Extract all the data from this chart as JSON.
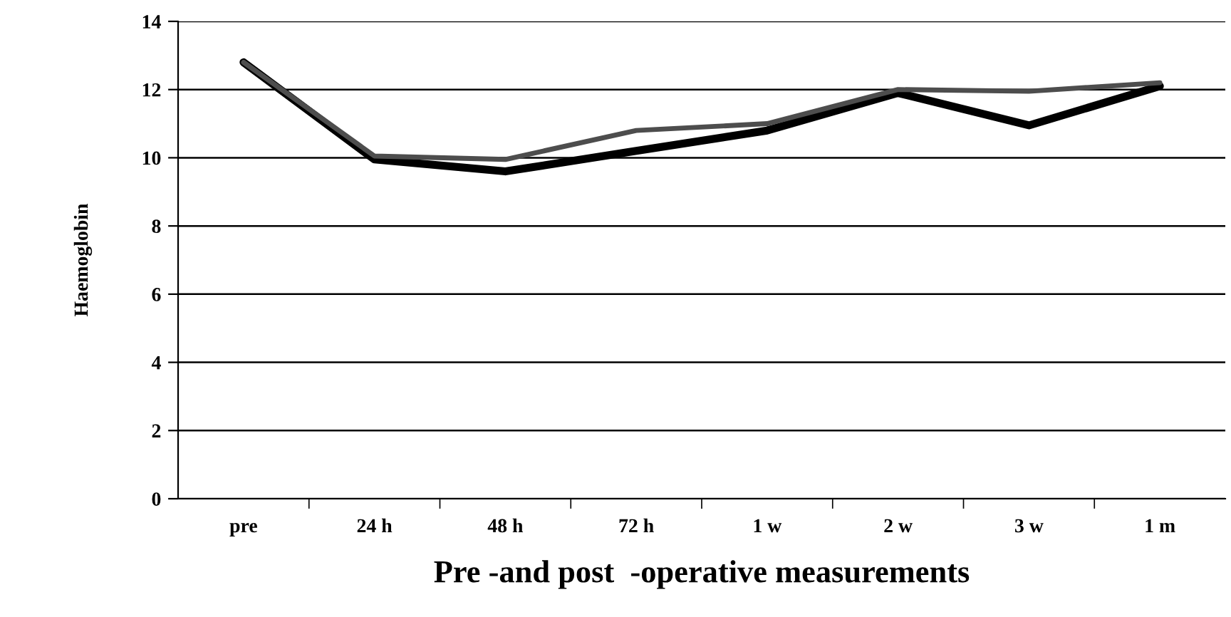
{
  "chart_data": {
    "type": "line",
    "xlabel": "Pre -and post  -operative measurements",
    "ylabel": "Haemoglobin",
    "categories": [
      "pre",
      "24 h",
      "48 h",
      "72 h",
      "1 w",
      "2 w",
      "3 w",
      "1 m"
    ],
    "series": [
      {
        "color": "#000000",
        "values": [
          12.8,
          9.95,
          9.6,
          10.2,
          10.8,
          11.9,
          10.95,
          12.1
        ]
      },
      {
        "color": "#4d4d4d",
        "values": [
          12.8,
          10.05,
          9.95,
          10.8,
          11.0,
          12.0,
          11.95,
          12.2
        ]
      }
    ],
    "ylim": [
      0,
      14
    ],
    "yticks": [
      0,
      2,
      4,
      6,
      8,
      10,
      12,
      14
    ],
    "grid": "y",
    "marker": "none",
    "line_style": "solid"
  }
}
